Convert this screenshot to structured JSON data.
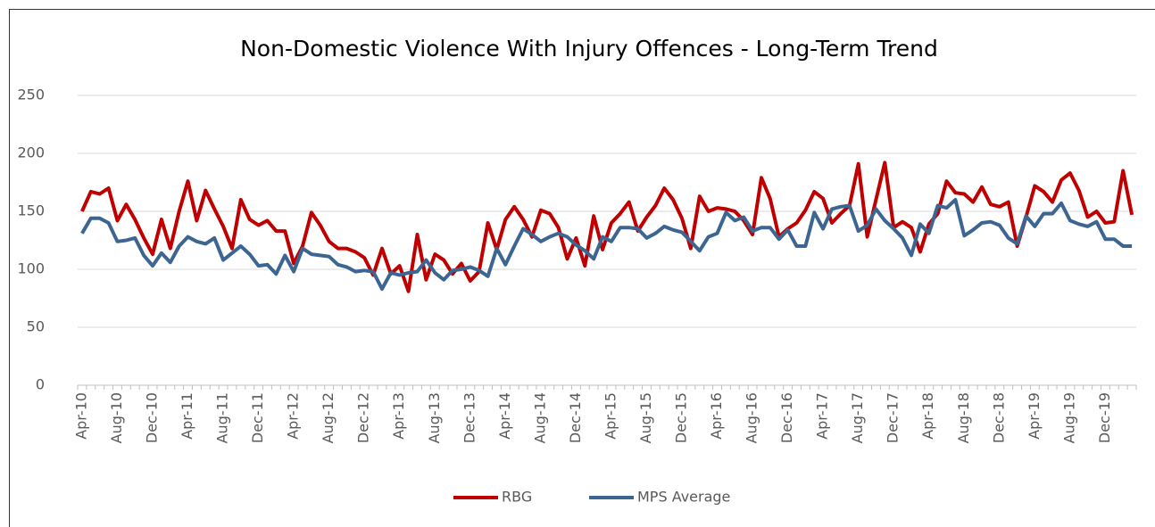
{
  "chart_data": {
    "type": "line",
    "title": "Non-Domestic Violence With Injury Offences - Long-Term Trend",
    "categories": [
      "Apr-10",
      null,
      null,
      null,
      "Aug-10",
      null,
      null,
      null,
      "Dec-10",
      null,
      null,
      null,
      "Apr-11",
      null,
      null,
      null,
      "Aug-11",
      null,
      null,
      null,
      "Dec-11",
      null,
      null,
      null,
      "Apr-12",
      null,
      null,
      null,
      "Aug-12",
      null,
      null,
      null,
      "Dec-12",
      null,
      null,
      null,
      "Apr-13",
      null,
      null,
      null,
      "Aug-13",
      null,
      null,
      null,
      "Dec-13",
      null,
      null,
      null,
      "Apr-14",
      null,
      null,
      null,
      "Aug-14",
      null,
      null,
      null,
      "Dec-14",
      null,
      null,
      null,
      "Apr-15",
      null,
      null,
      null,
      "Aug-15",
      null,
      null,
      null,
      "Dec-15",
      null,
      null,
      null,
      "Apr-16",
      null,
      null,
      null,
      "Aug-16",
      null,
      null,
      null,
      "Dec-16",
      null,
      null,
      null,
      "Apr-17",
      null,
      null,
      null,
      "Aug-17",
      null,
      null,
      null,
      "Dec-17",
      null,
      null,
      null,
      "Apr-18",
      null,
      null,
      null,
      "Aug-18",
      null,
      null,
      null,
      "Dec-18",
      null,
      null,
      null,
      "Apr-19",
      null,
      null,
      null,
      "Aug-19",
      null,
      null,
      null,
      "Dec-19",
      null,
      null,
      null
    ],
    "series": [
      {
        "name": "RBG",
        "color": "#c00000",
        "values": [
          150,
          167,
          165,
          170,
          142,
          156,
          143,
          127,
          113,
          143,
          118,
          150,
          176,
          142,
          168,
          152,
          137,
          118,
          160,
          143,
          138,
          142,
          133,
          133,
          105,
          120,
          149,
          138,
          124,
          118,
          118,
          115,
          110,
          95,
          118,
          96,
          103,
          81,
          130,
          91,
          113,
          108,
          96,
          105,
          90,
          98,
          140,
          117,
          143,
          154,
          143,
          128,
          151,
          148,
          136,
          109,
          127,
          103,
          146,
          117,
          140,
          148,
          158,
          133,
          145,
          155,
          170,
          160,
          144,
          118,
          163,
          150,
          153,
          152,
          150,
          142,
          130,
          179,
          161,
          128,
          135,
          140,
          151,
          167,
          161,
          140,
          148,
          155,
          191,
          128,
          160,
          192,
          136,
          141,
          136,
          115,
          139,
          148,
          176,
          166,
          165,
          158,
          171,
          156,
          154,
          158,
          120,
          145,
          172,
          167,
          158,
          177,
          183,
          168,
          145,
          150,
          140,
          141,
          185,
          147
        ]
      },
      {
        "name": "MPS Average",
        "color": "#3d6591",
        "values": [
          131,
          144,
          144,
          140,
          124,
          125,
          127,
          112,
          103,
          114,
          106,
          120,
          128,
          124,
          122,
          127,
          108,
          114,
          120,
          113,
          103,
          104,
          96,
          112,
          98,
          118,
          113,
          112,
          111,
          104,
          102,
          98,
          99,
          98,
          83,
          97,
          95,
          97,
          98,
          108,
          97,
          91,
          99,
          100,
          102,
          99,
          94,
          118,
          104,
          120,
          135,
          130,
          124,
          128,
          131,
          128,
          121,
          116,
          109,
          128,
          124,
          136,
          136,
          135,
          127,
          131,
          137,
          134,
          132,
          124,
          116,
          128,
          131,
          149,
          142,
          145,
          133,
          136,
          136,
          126,
          134,
          120,
          120,
          149,
          135,
          152,
          154,
          155,
          133,
          138,
          152,
          142,
          135,
          127,
          112,
          139,
          131,
          155,
          153,
          160,
          129,
          134,
          140,
          141,
          138,
          127,
          122,
          146,
          137,
          148,
          148,
          157,
          142,
          139,
          137,
          141,
          126,
          126,
          120,
          120
        ]
      }
    ],
    "ylim": [
      0,
      250
    ],
    "yticks": [
      0,
      50,
      100,
      150,
      200,
      250
    ],
    "grid": true,
    "legend": "bottom"
  }
}
